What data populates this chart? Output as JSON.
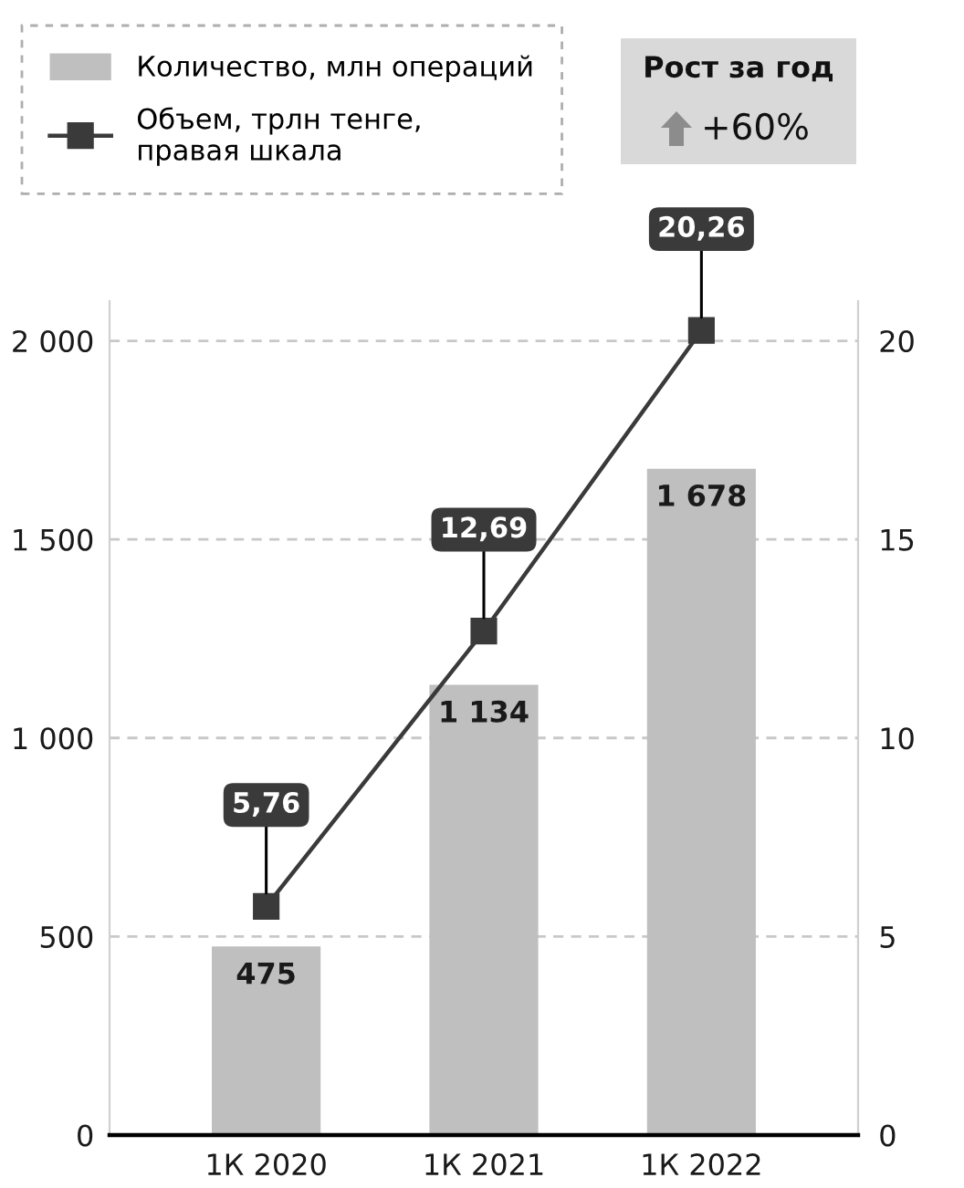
{
  "chart_data": {
    "type": "bar",
    "categories": [
      "1К 2020",
      "1К 2021",
      "1К 2022"
    ],
    "series": [
      {
        "name": "Количество, млн операций",
        "color": "#bfbfbf",
        "values": [
          475,
          1134,
          1678
        ],
        "value_labels": [
          "475",
          "1 134",
          "1 678"
        ]
      },
      {
        "name": "Объем, трлн тенге,\nправая шкала",
        "type": "line",
        "axis": "y2",
        "color": "#3a3a3a",
        "values": [
          5.76,
          12.69,
          20.26
        ],
        "value_labels": [
          "5,76",
          "12,69",
          "20,26"
        ]
      }
    ],
    "ylim": [
      0,
      2100
    ],
    "yticks": [
      0,
      500,
      {
        "value": 1000,
        "label": "1 000"
      },
      {
        "value": 1500,
        "label": "1 500"
      },
      {
        "value": 2000,
        "label": "2 000"
      }
    ],
    "y2lim": [
      0,
      21
    ],
    "y2ticks": [
      0,
      5,
      10,
      15,
      20
    ],
    "grid": "y",
    "legend": "top left",
    "marker": "square",
    "line_style": "solid",
    "annotations": [
      "Рост за год",
      "+60%"
    ]
  }
}
